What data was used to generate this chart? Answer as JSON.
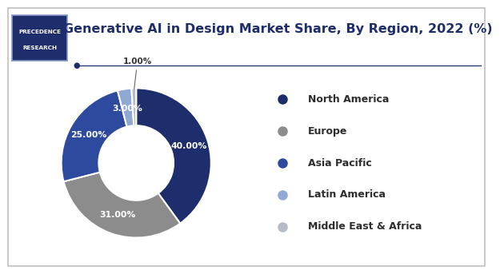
{
  "title": "Generative AI in Design Market Share, By Region, 2022 (%)",
  "title_fontsize": 11.5,
  "title_color": "#1e2d6b",
  "segments": [
    "North America",
    "Europe",
    "Asia Pacific",
    "Latin America",
    "Middle East & Africa"
  ],
  "values": [
    40.0,
    31.0,
    25.0,
    3.0,
    1.0
  ],
  "colors": [
    "#1e2d6b",
    "#8c8c8c",
    "#2e4a9e",
    "#8fa8d4",
    "#b5bcc8"
  ],
  "labels": [
    "40.00%",
    "31.00%",
    "25.00%",
    "3.00%",
    "1.00%"
  ],
  "label_colors": [
    "white",
    "white",
    "white",
    "white",
    "#333333"
  ],
  "background_color": "#ffffff",
  "border_color": "#c0c0c0",
  "logo_bg_color": "#1e2d6b",
  "logo_border_color": "#8898cc",
  "logo_text_color": "#ffffff",
  "divider_color": "#1e2d6b",
  "legend_text_color": "#2d2d2d",
  "legend_fontsize": 9.0,
  "legend_marker_colors": [
    "#1e2d6b",
    "#8c8c8c",
    "#2e4a9e",
    "#8fa8d4",
    "#b5bcc8"
  ],
  "dot_color": "#1e2d6b",
  "wedge_edge_color": "#ffffff",
  "wedge_linewidth": 1.5,
  "donut_width": 0.5
}
